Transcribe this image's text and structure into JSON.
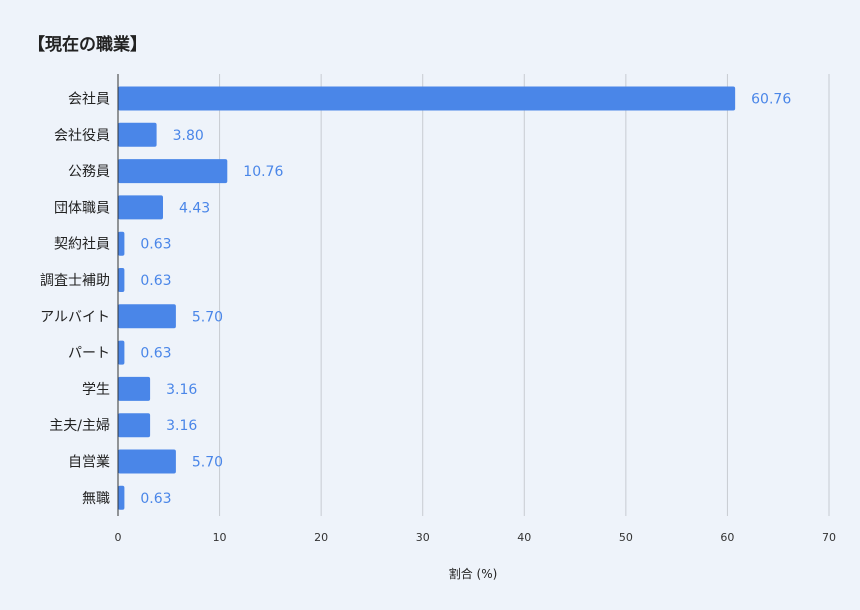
{
  "chart_data": {
    "type": "bar",
    "orientation": "horizontal",
    "title": "【現在の職業】",
    "xlabel": "割合 (%)",
    "categories": [
      "会社員",
      "会社役員",
      "公務員",
      "団体職員",
      "契約社員",
      "調査士補助",
      "アルバイト",
      "パート",
      "学生",
      "主夫/主婦",
      "自営業",
      "無職"
    ],
    "values": [
      60.76,
      3.8,
      10.76,
      4.43,
      0.63,
      0.63,
      5.7,
      0.63,
      3.16,
      3.16,
      5.7,
      0.63
    ],
    "value_labels": [
      "60.76",
      "3.80",
      "10.76",
      "4.43",
      "0.63",
      "0.63",
      "5.70",
      "0.63",
      "3.16",
      "3.16",
      "5.70",
      "0.63"
    ],
    "xlim": [
      0,
      70
    ],
    "xticks": [
      0,
      10,
      20,
      30,
      40,
      50,
      60,
      70
    ],
    "grid": true,
    "colors": {
      "bar": "#4a86e8",
      "label": "#4a86e8",
      "grid": "#c7cbd1",
      "background": "#eef3fa"
    }
  }
}
